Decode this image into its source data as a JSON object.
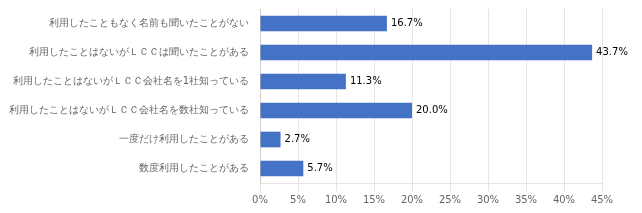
{
  "chart_data": {
    "type": "bar",
    "orientation": "horizontal",
    "categories": [
      "利用したこともなく名前も聞いたことがない",
      "利用したことはないがＬＣＣは聞いたことがある",
      "利用したことはないがＬＣＣ会社名を1社知っている",
      "利用したことはないがＬＣＣ会社名を数社知っている",
      "一度だけ利用したことがある",
      "数度利用したことがある"
    ],
    "values": [
      16.7,
      43.7,
      11.3,
      20.0,
      2.7,
      5.7
    ],
    "value_labels": [
      "16.7%",
      "43.7%",
      "11.3%",
      "20.0%",
      "2.7%",
      "5.7%"
    ],
    "data_labels": true,
    "color": "#4472c4",
    "xlim": [
      0,
      45
    ],
    "xticks": [
      {
        "value": 0,
        "label": "0%"
      },
      {
        "value": 5,
        "label": "5%"
      },
      {
        "value": 10,
        "label": "10%"
      },
      {
        "value": 15,
        "label": "15%"
      },
      {
        "value": 20,
        "label": "20%"
      },
      {
        "value": 25,
        "label": "25%"
      },
      {
        "value": 30,
        "label": "30%"
      },
      {
        "value": 35,
        "label": "35%"
      },
      {
        "value": 40,
        "label": "40%"
      },
      {
        "value": 45,
        "label": "45%"
      }
    ],
    "grid": true
  }
}
